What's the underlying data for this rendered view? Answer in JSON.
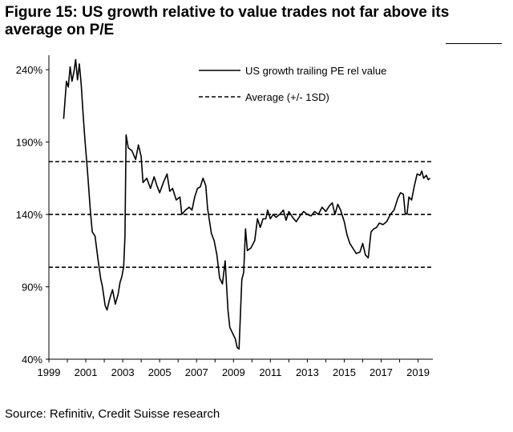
{
  "figure": {
    "title": "Figure 15: US growth relative to value trades not far above its average on P/E",
    "source": "Source: Refinitiv, Credit Suisse research"
  },
  "chart_data": {
    "type": "line",
    "xlim": [
      1999,
      2019.8
    ],
    "ylim": [
      40,
      250
    ],
    "x_ticks": [
      "1999",
      "2001",
      "2003",
      "2005",
      "2007",
      "2009",
      "2011",
      "2013",
      "2015",
      "2017",
      "2019"
    ],
    "x_tick_values": [
      1999,
      2001,
      2003,
      2005,
      2007,
      2009,
      2011,
      2013,
      2015,
      2017,
      2019
    ],
    "y_ticks": [
      "40%",
      "90%",
      "140%",
      "190%",
      "240%"
    ],
    "y_tick_values": [
      40,
      90,
      140,
      190,
      240
    ],
    "legend_position": "top-right",
    "series": [
      {
        "name": "US growth trailing PE rel value",
        "style": "solid",
        "color": "#000000",
        "points": [
          [
            1999.8,
            206
          ],
          [
            1999.95,
            232
          ],
          [
            2000.05,
            228
          ],
          [
            2000.15,
            242
          ],
          [
            2000.25,
            232
          ],
          [
            2000.35,
            238
          ],
          [
            2000.45,
            247
          ],
          [
            2000.55,
            233
          ],
          [
            2000.65,
            244
          ],
          [
            2000.75,
            230
          ],
          [
            2000.85,
            210
          ],
          [
            2000.95,
            192
          ],
          [
            2001.1,
            168
          ],
          [
            2001.25,
            142
          ],
          [
            2001.35,
            128
          ],
          [
            2001.5,
            125
          ],
          [
            2001.65,
            110
          ],
          [
            2001.8,
            96
          ],
          [
            2001.9,
            90
          ],
          [
            2002.05,
            77
          ],
          [
            2002.15,
            74
          ],
          [
            2002.3,
            82
          ],
          [
            2002.45,
            88
          ],
          [
            2002.6,
            78
          ],
          [
            2002.75,
            85
          ],
          [
            2002.85,
            93
          ],
          [
            2002.95,
            97
          ],
          [
            2003.05,
            104
          ],
          [
            2003.12,
            125
          ],
          [
            2003.18,
            195
          ],
          [
            2003.3,
            186
          ],
          [
            2003.5,
            184
          ],
          [
            2003.7,
            178
          ],
          [
            2003.85,
            188
          ],
          [
            2004.0,
            180
          ],
          [
            2004.1,
            162
          ],
          [
            2004.3,
            165
          ],
          [
            2004.5,
            158
          ],
          [
            2004.7,
            166
          ],
          [
            2004.85,
            160
          ],
          [
            2005.0,
            155
          ],
          [
            2005.2,
            162
          ],
          [
            2005.4,
            168
          ],
          [
            2005.55,
            156
          ],
          [
            2005.7,
            158
          ],
          [
            2005.9,
            150
          ],
          [
            2006.1,
            152
          ],
          [
            2006.2,
            140
          ],
          [
            2006.4,
            143
          ],
          [
            2006.6,
            145
          ],
          [
            2006.75,
            143
          ],
          [
            2006.9,
            152
          ],
          [
            2007.05,
            158
          ],
          [
            2007.2,
            159
          ],
          [
            2007.35,
            165
          ],
          [
            2007.5,
            160
          ],
          [
            2007.6,
            144
          ],
          [
            2007.8,
            127
          ],
          [
            2007.95,
            122
          ],
          [
            2008.1,
            112
          ],
          [
            2008.25,
            96
          ],
          [
            2008.4,
            92
          ],
          [
            2008.55,
            108
          ],
          [
            2008.7,
            74
          ],
          [
            2008.8,
            62
          ],
          [
            2008.95,
            58
          ],
          [
            2009.1,
            54
          ],
          [
            2009.2,
            48
          ],
          [
            2009.3,
            47
          ],
          [
            2009.45,
            95
          ],
          [
            2009.55,
            100
          ],
          [
            2009.65,
            130
          ],
          [
            2009.75,
            115
          ],
          [
            2009.95,
            117
          ],
          [
            2010.15,
            122
          ],
          [
            2010.3,
            137
          ],
          [
            2010.45,
            131
          ],
          [
            2010.6,
            137
          ],
          [
            2010.75,
            137
          ],
          [
            2010.85,
            143
          ],
          [
            2011.0,
            137
          ],
          [
            2011.15,
            140
          ],
          [
            2011.3,
            138
          ],
          [
            2011.5,
            140
          ],
          [
            2011.7,
            143
          ],
          [
            2011.85,
            136
          ],
          [
            2012.0,
            142
          ],
          [
            2012.2,
            138
          ],
          [
            2012.4,
            135
          ],
          [
            2012.6,
            139
          ],
          [
            2012.8,
            142
          ],
          [
            2013.0,
            140
          ],
          [
            2013.2,
            139
          ],
          [
            2013.4,
            142
          ],
          [
            2013.6,
            140
          ],
          [
            2013.8,
            145
          ],
          [
            2014.0,
            142
          ],
          [
            2014.2,
            146
          ],
          [
            2014.35,
            148
          ],
          [
            2014.5,
            140
          ],
          [
            2014.65,
            147
          ],
          [
            2014.8,
            143
          ],
          [
            2015.0,
            135
          ],
          [
            2015.15,
            126
          ],
          [
            2015.3,
            120
          ],
          [
            2015.5,
            116
          ],
          [
            2015.65,
            113
          ],
          [
            2015.85,
            114
          ],
          [
            2016.0,
            120
          ],
          [
            2016.15,
            112
          ],
          [
            2016.3,
            110
          ],
          [
            2016.45,
            128
          ],
          [
            2016.6,
            130
          ],
          [
            2016.75,
            131
          ],
          [
            2016.9,
            134
          ],
          [
            2017.1,
            133
          ],
          [
            2017.3,
            135
          ],
          [
            2017.5,
            140
          ],
          [
            2017.7,
            143
          ],
          [
            2017.9,
            151
          ],
          [
            2018.05,
            155
          ],
          [
            2018.2,
            154
          ],
          [
            2018.3,
            141
          ],
          [
            2018.4,
            140
          ],
          [
            2018.5,
            152
          ],
          [
            2018.65,
            150
          ],
          [
            2018.8,
            160
          ],
          [
            2018.95,
            168
          ],
          [
            2019.1,
            167
          ],
          [
            2019.2,
            170
          ],
          [
            2019.3,
            165
          ],
          [
            2019.45,
            167
          ],
          [
            2019.55,
            164
          ],
          [
            2019.65,
            165
          ]
        ]
      },
      {
        "name": "Average (+/- 1SD)",
        "style": "dashed",
        "color": "#000000",
        "lines": [
          {
            "label": "+1SD",
            "y": 176.5
          },
          {
            "label": "Average",
            "y": 140
          },
          {
            "label": "-1SD",
            "y": 103.5
          }
        ]
      }
    ]
  }
}
